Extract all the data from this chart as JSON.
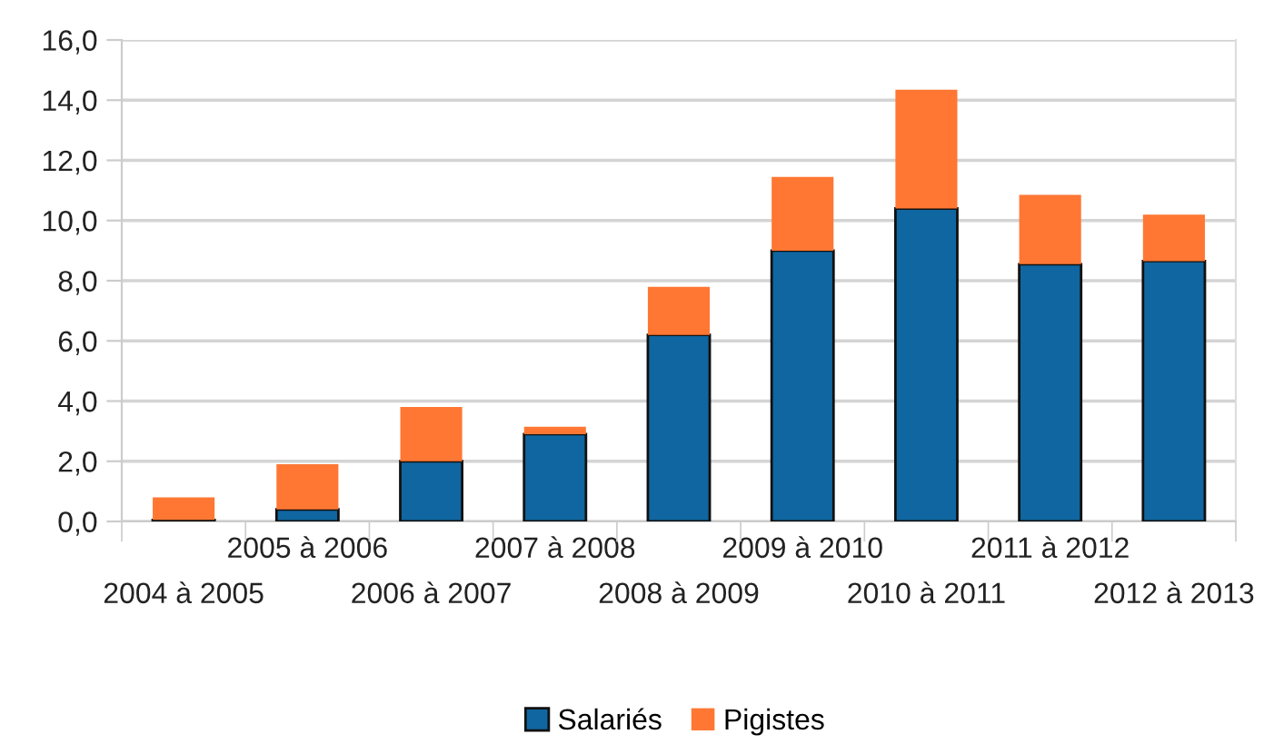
{
  "chart_data": {
    "type": "bar",
    "stacked": true,
    "categories": [
      "2004 à 2005",
      "2005 à 2006",
      "2006 à 2007",
      "2007 à 2008",
      "2008 à 2009",
      "2009 à 2010",
      "2010 à 2011",
      "2011 à 2012",
      "2012 à 2013"
    ],
    "series": [
      {
        "name": "Salariés",
        "color": "#1066a0",
        "values": [
          0.05,
          0.4,
          2.0,
          2.9,
          6.2,
          9.0,
          10.4,
          8.55,
          8.65
        ]
      },
      {
        "name": "Pigistes",
        "color": "#ff7733",
        "values": [
          0.75,
          1.5,
          1.8,
          0.25,
          1.6,
          2.45,
          3.95,
          2.3,
          1.55
        ]
      }
    ],
    "ylim": [
      0,
      16
    ],
    "yticks": [
      {
        "value": 0,
        "label": "0,0"
      },
      {
        "value": 2,
        "label": "2,0"
      },
      {
        "value": 4,
        "label": "4,0"
      },
      {
        "value": 6,
        "label": "6,0"
      },
      {
        "value": 8,
        "label": "8,0"
      },
      {
        "value": 10,
        "label": "10,0"
      },
      {
        "value": 12,
        "label": "12,0"
      },
      {
        "value": 14,
        "label": "14,0"
      },
      {
        "value": 16,
        "label": "16,0"
      }
    ],
    "grid": "y",
    "legend": "bottom"
  }
}
